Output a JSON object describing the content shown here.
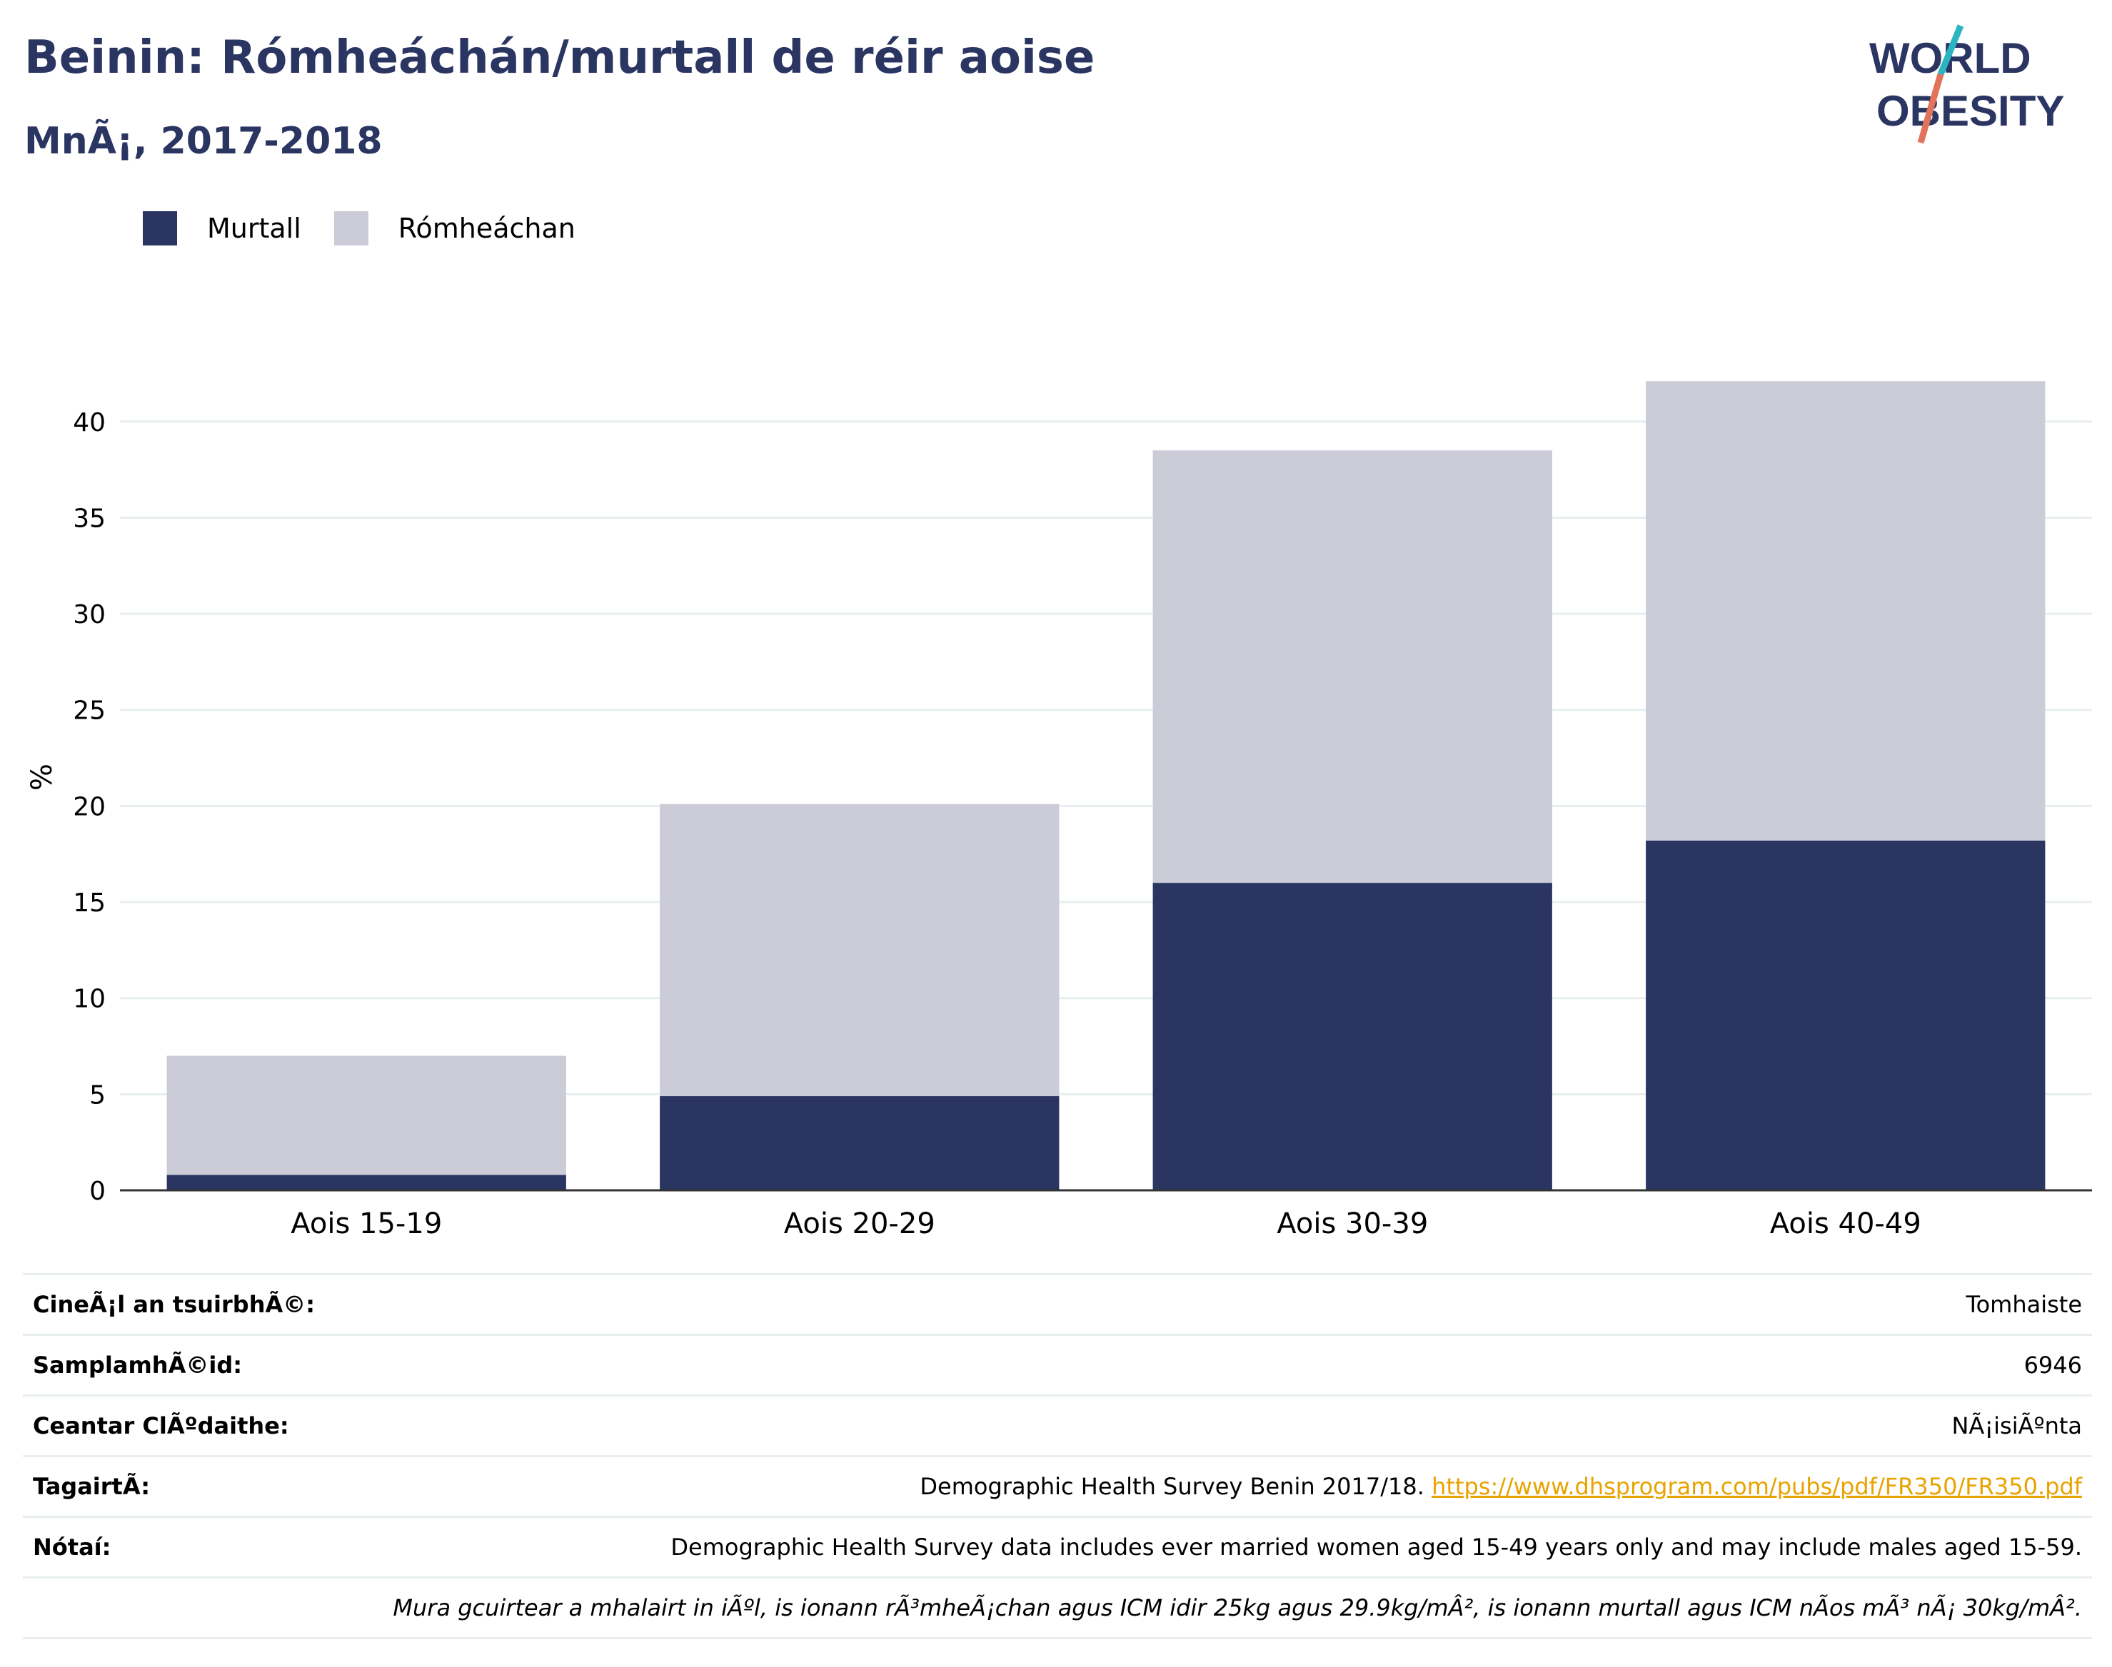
{
  "header": {
    "title": "Beinin: Rómheáchán/murtall de réir aoise",
    "subtitle": "MnÃ¡, 2017-2018"
  },
  "logo": {
    "line1": "WORLD",
    "line2": "OBESITY",
    "slash_colors": [
      "#2bb5c0",
      "#e2735a"
    ],
    "text_color": "#2a3562"
  },
  "colors": {
    "obese": "#2a3562",
    "overweight": "#cbccd7",
    "grid": "#e8eef0",
    "axis": "#333333"
  },
  "chart_data": {
    "type": "bar",
    "stacked": true,
    "categories": [
      "Aois 15-19",
      "Aois 20-29",
      "Aois 30-39",
      "Aois 40-49"
    ],
    "series": [
      {
        "name": "Murtall",
        "values": [
          0.8,
          4.9,
          16.0,
          18.2
        ]
      },
      {
        "name": "Rómheáchan",
        "values": [
          6.2,
          15.2,
          22.5,
          23.9
        ]
      }
    ],
    "ylabel": "%",
    "ylim": [
      0,
      43
    ],
    "yticks": [
      0,
      5,
      10,
      15,
      20,
      25,
      30,
      35,
      40
    ],
    "grid": true,
    "legend_position": "top-left"
  },
  "meta": {
    "survey_type_label": "CineÃ¡l an tsuirbhÃ©:",
    "survey_type_value": "Tomhaiste",
    "sample_size_label": "SamplamhÃ©id:",
    "sample_size_value": "6946",
    "area_label": "Ceantar ClÃºdaithe:",
    "area_value": "NÃ¡isiÃºnta",
    "reference_label": "TagairtÃ:",
    "reference_text": "Demographic Health Survey Benin 2017/18. ",
    "reference_link": "https://www.dhsprogram.com/pubs/pdf/FR350/FR350.pdf",
    "notes_label": "Nótaí:",
    "notes_text": "Demographic Health Survey data includes ever married women aged 15-49 years only and may include males aged 15-59.",
    "definition_text": "Mura gcuirtear a mhalairt in iÃºl, is ionann rÃ³mheÃ¡chan agus ICM idir 25kg agus 29.9kg/mÂ², is ionann murtall agus ICM nÃos mÃ³ nÃ¡ 30kg/mÂ²."
  }
}
